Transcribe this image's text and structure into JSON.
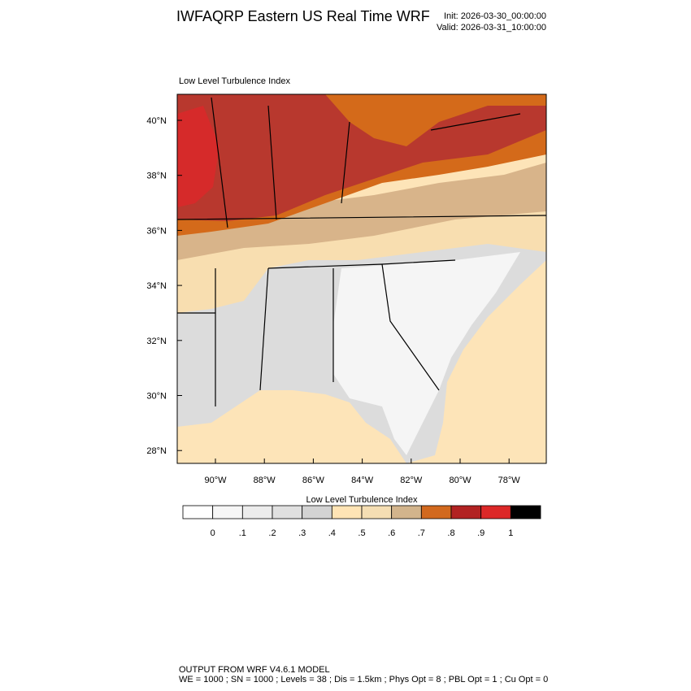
{
  "header": {
    "title": "IWFAQRP Eastern US Real Time WRF",
    "init": "Init: 2026-03-30_00:00:00",
    "valid": "Valid: 2026-03-31_10:00:00"
  },
  "map": {
    "subtitle": "Low Level Turbulence Index",
    "lat_labels": [
      "40°N",
      "38°N",
      "36°N",
      "34°N",
      "32°N",
      "30°N",
      "28°N"
    ],
    "lon_labels": [
      "90°W",
      "88°W",
      "86°W",
      "84°W",
      "82°W",
      "80°W",
      "78°W"
    ]
  },
  "colorbar": {
    "title": "Low Level Turbulence Index",
    "colors": [
      "#ffffff",
      "#f6f6f6",
      "#ececec",
      "#e0e0e0",
      "#d3d3d3",
      "#ffe4b5",
      "#f5deb3",
      "#d2b48c",
      "#d2691e",
      "#b22222",
      "#dc2828",
      "#000000"
    ],
    "labels": [
      "0",
      ".1",
      ".2",
      ".3",
      ".4",
      ".5",
      ".6",
      ".7",
      ".8",
      ".9",
      "1"
    ]
  },
  "footer": {
    "line1": "OUTPUT FROM WRF V4.6.1 MODEL",
    "line2": "WE = 1000 ; SN = 1000 ; Levels = 38 ; Dis = 1.5km ; Phys Opt = 8 ; PBL Opt = 1 ; Cu Opt = 0"
  }
}
